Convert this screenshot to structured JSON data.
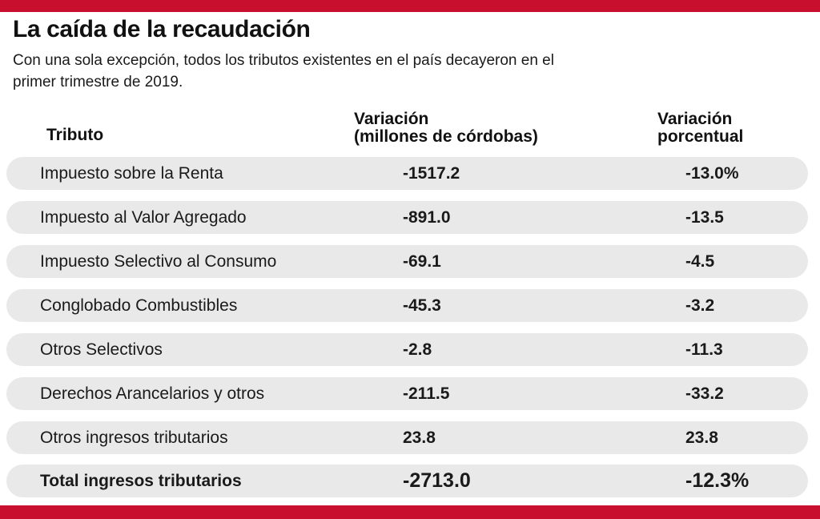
{
  "title": "La caída de la recaudación",
  "subtitle": "Con una sola excepción, todos los tributos existentes en el país decayeron en el primer trimestre de 2019.",
  "headers": {
    "tributo": "Tributo",
    "variacion_line1": "Variación",
    "variacion_line2": "(millones de córdobas)",
    "porcentual_line1": "Variación",
    "porcentual_line2": "porcentual"
  },
  "rows": [
    {
      "tributo": "Impuesto sobre la Renta",
      "variacion": "-1517.2",
      "porcentual": "-13.0%"
    },
    {
      "tributo": "Impuesto al Valor Agregado",
      "variacion": "-891.0",
      "porcentual": "-13.5"
    },
    {
      "tributo": "Impuesto Selectivo al Consumo",
      "variacion": "-69.1",
      "porcentual": "-4.5"
    },
    {
      "tributo": "Conglobado Combustibles",
      "variacion": "-45.3",
      "porcentual": "-3.2"
    },
    {
      "tributo": "Otros Selectivos",
      "variacion": "-2.8",
      "porcentual": "-11.3"
    },
    {
      "tributo": "Derechos Arancelarios y otros",
      "variacion": "-211.5",
      "porcentual": "-33.2"
    },
    {
      "tributo": "Otros ingresos tributarios",
      "variacion": "23.8",
      "porcentual": "23.8"
    }
  ],
  "total": {
    "tributo": "Total ingresos tributarios",
    "variacion": "-2713.0",
    "porcentual": "-12.3%"
  },
  "colors": {
    "accent": "#c8102e",
    "row_background": "#e9e9e9"
  }
}
